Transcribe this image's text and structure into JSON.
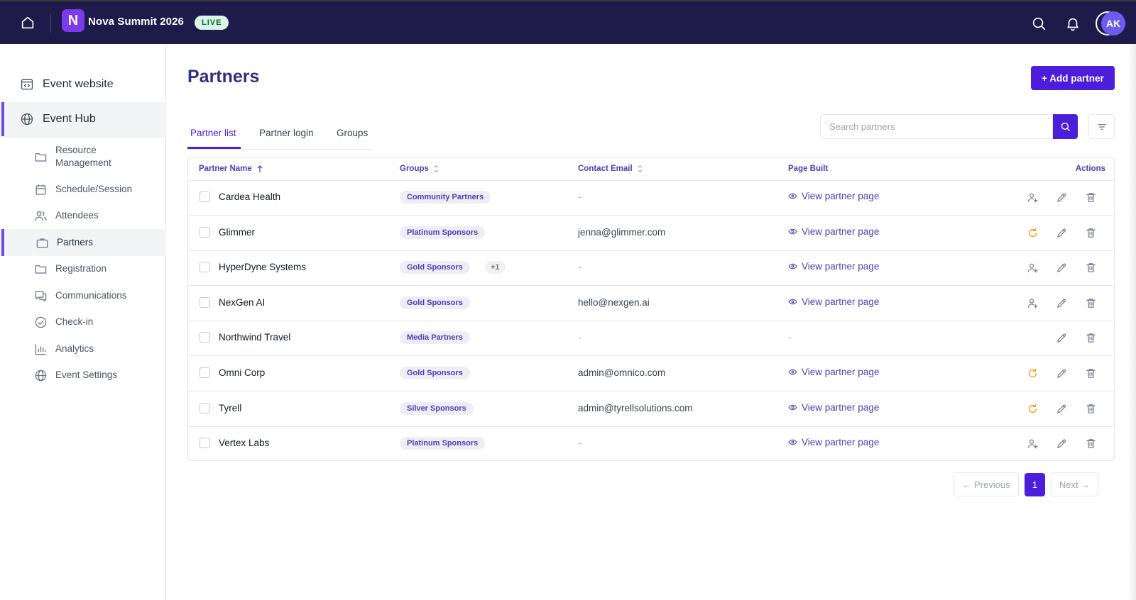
{
  "header": {
    "logo_letter": "N",
    "event_name": "Nova Summit 2026",
    "status_badge": "LIVE",
    "avatar_initials": "AK",
    "icons": [
      "home-icon",
      "search-icon",
      "bell-icon"
    ]
  },
  "sidebar": {
    "top_items": [
      {
        "label": "Event website",
        "icon": "website-icon"
      },
      {
        "label": "Event Hub",
        "icon": "globe-icon",
        "active": true
      }
    ],
    "sub_items": [
      {
        "label": "Resource\nManagement",
        "icon": "folder-icon"
      },
      {
        "label": "Schedule/Session",
        "icon": "calendar-icon"
      },
      {
        "label": "Attendees",
        "icon": "users-icon"
      },
      {
        "label": "Partners",
        "icon": "briefcase-icon",
        "active": true
      },
      {
        "label": "Registration",
        "icon": "folder-icon"
      },
      {
        "label": "Communications",
        "icon": "chat-icon"
      },
      {
        "label": "Check-in",
        "icon": "check-circle-icon"
      },
      {
        "label": "Analytics",
        "icon": "bar-chart-icon"
      },
      {
        "label": "Event Settings",
        "icon": "globe-icon"
      }
    ]
  },
  "main": {
    "title": "Partners",
    "add_button": "+ Add partner",
    "tabs": [
      "Partner list",
      "Partner login",
      "Groups"
    ],
    "active_tab": "Partner list",
    "search_placeholder": "Search partners"
  },
  "table": {
    "columns": [
      "Partner Name",
      "Groups",
      "Contact Email",
      "Page Built",
      "Actions"
    ],
    "view_link_label": "View partner page",
    "rows": [
      {
        "name": "Cardea Health",
        "groups": [
          "Community Partners"
        ],
        "email": "-",
        "page": "View partner page",
        "status_action": "add-user"
      },
      {
        "name": "Glimmer",
        "groups": [
          "Platinum Sponsors"
        ],
        "email": "jenna@glimmer.com",
        "page": "View partner page",
        "status_action": "refresh"
      },
      {
        "name": "HyperDyne Systems",
        "groups": [
          "Gold Sponsors",
          "+1"
        ],
        "email": "-",
        "page": "View partner page",
        "status_action": "add-user"
      },
      {
        "name": "NexGen AI",
        "groups": [
          "Gold Sponsors"
        ],
        "email": "hello@nexgen.ai",
        "page": "View partner page",
        "status_action": "add-user"
      },
      {
        "name": "Northwind Travel",
        "groups": [
          "Media Partners"
        ],
        "email": "-",
        "page": "-",
        "status_action": "none"
      },
      {
        "name": "Omni Corp",
        "groups": [
          "Gold Sponsors"
        ],
        "email": "admin@omnico.com",
        "page": "View partner page",
        "status_action": "refresh"
      },
      {
        "name": "Tyrell",
        "groups": [
          "Silver Sponsors"
        ],
        "email": "admin@tyrellsolutions.com",
        "page": "View partner page",
        "status_action": "refresh"
      },
      {
        "name": "Vertex Labs",
        "groups": [
          "Platinum Sponsors"
        ],
        "email": "-",
        "page": "View partner page",
        "status_action": "add-user"
      }
    ]
  },
  "pagination": {
    "previous": "← Previous",
    "current": "1",
    "next": "Next →"
  },
  "colors": {
    "header_bg": "#1e1b4b",
    "accent": "#4c1dda",
    "link": "#4c3fb0",
    "refresh_icon": "#f59e0b",
    "live_badge_bg": "#d9f5e6"
  }
}
